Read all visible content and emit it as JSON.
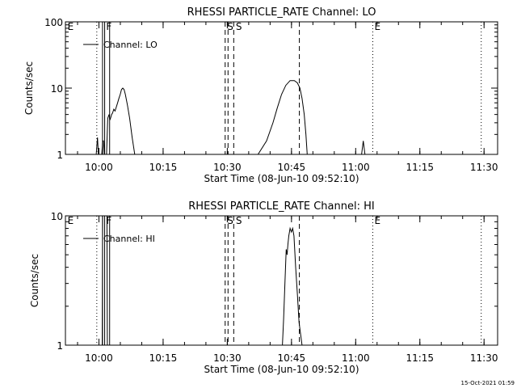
{
  "x_ticks": [
    {
      "v": 7.83,
      "label": "10:00"
    },
    {
      "v": 22.83,
      "label": "10:15"
    },
    {
      "v": 37.83,
      "label": "10:30"
    },
    {
      "v": 52.83,
      "label": "10:45"
    },
    {
      "v": 67.83,
      "label": "11:00"
    },
    {
      "v": 82.83,
      "label": "11:15"
    },
    {
      "v": 97.83,
      "label": "11:30"
    }
  ],
  "footer": {
    "timestamp": "15-Oct-2021 01:59"
  },
  "chart_data": [
    {
      "type": "line",
      "title": "RHESSI PARTICLE_RATE Channel: LO",
      "xlabel": "Start Time (08-Jun-10 09:52:10)",
      "ylabel": "Counts/sec",
      "x_unit": "minutes after 09:52:10",
      "xlim": [
        0,
        101
      ],
      "ylim": [
        1,
        100
      ],
      "y_scale": "log",
      "y_ticks": [
        {
          "v": 1,
          "label": "1"
        },
        {
          "v": 10,
          "label": "10"
        },
        {
          "v": 100,
          "label": "100"
        }
      ],
      "legend": {
        "placement": "top-left",
        "entries": [
          "Channel: LO"
        ]
      },
      "series": [
        {
          "name": "Channel: LO",
          "x": [
            0,
            7.2,
            7.5,
            7.7,
            8.0,
            8.5,
            8.7,
            8.9,
            9.1,
            9.6,
            9.9,
            10.2,
            10.4,
            10.6,
            10.8,
            11.0,
            11.3,
            11.6,
            11.9,
            12.2,
            12.5,
            12.8,
            13.1,
            13.4,
            13.7,
            14.0,
            14.5,
            15.0,
            15.6,
            16.2,
            20,
            45,
            47,
            48.5,
            49.5,
            50.5,
            51.5,
            52.5,
            53.5,
            54.2,
            54.8,
            55.3,
            55.8,
            56.2,
            56.5,
            57.5,
            68,
            69.2,
            69.6,
            70.0,
            101
          ],
          "y": [
            1,
            1,
            1.8,
            1,
            1,
            1,
            1.6,
            1.6,
            1,
            1,
            3.5,
            4,
            3.3,
            3.6,
            4,
            4.2,
            4.8,
            4.5,
            5.2,
            6,
            7,
            8,
            9.5,
            10,
            9.5,
            8,
            5.5,
            3.5,
            1.8,
            1,
            1,
            1,
            1.6,
            3,
            5,
            8,
            11,
            13,
            13,
            12,
            10,
            7,
            4,
            2,
            1,
            1,
            1,
            1,
            1.6,
            1,
            1
          ]
        }
      ],
      "markers": [
        {
          "x": 7.33,
          "style": "dotted",
          "label": ""
        },
        {
          "x": 8.67,
          "style": "solid",
          "label": ""
        },
        {
          "x": 9.17,
          "style": "solid",
          "label": ""
        },
        {
          "x": 10.33,
          "style": "solid",
          "label": ""
        },
        {
          "x": 37.33,
          "style": "dashed",
          "label": ""
        },
        {
          "x": 38.0,
          "style": "dashed",
          "label": ""
        },
        {
          "x": 39.33,
          "style": "dashed",
          "label": ""
        },
        {
          "x": 54.67,
          "style": "dashed",
          "label": ""
        },
        {
          "x": 71.83,
          "style": "dotted",
          "label": ""
        },
        {
          "x": 97.17,
          "style": "dotted",
          "label": ""
        }
      ],
      "annotations": [
        {
          "x": 0.5,
          "label": "E"
        },
        {
          "x": 9.5,
          "label": "F"
        },
        {
          "x": 37.8,
          "label": "S"
        },
        {
          "x": 39.8,
          "label": "S"
        },
        {
          "x": 72.2,
          "label": "E"
        }
      ]
    },
    {
      "type": "line",
      "title": "RHESSI PARTICLE_RATE Channel: HI",
      "xlabel": "Start Time (08-Jun-10 09:52:10)",
      "ylabel": "Counts/sec",
      "x_unit": "minutes after 09:52:10",
      "xlim": [
        0,
        101
      ],
      "ylim": [
        1,
        10
      ],
      "y_scale": "log",
      "y_ticks": [
        {
          "v": 1,
          "label": "1"
        },
        {
          "v": 10,
          "label": "10"
        }
      ],
      "legend": {
        "placement": "top-left",
        "entries": [
          "Channel: HI"
        ]
      },
      "series": [
        {
          "name": "Channel: HI",
          "x": [
            0,
            8.6,
            8.7,
            8.9,
            9.2,
            9.7,
            9.8,
            50.7,
            51.0,
            51.3,
            51.6,
            51.8,
            52.0,
            52.2,
            52.5,
            52.8,
            53.1,
            53.4,
            53.8,
            54.2,
            54.6,
            55.3,
            101
          ],
          "y": [
            1,
            1,
            10,
            10,
            10,
            10,
            1,
            1,
            1.6,
            3,
            5.5,
            5,
            6,
            7,
            8,
            7.5,
            8,
            7,
            4,
            2.5,
            1.5,
            1,
            1
          ]
        }
      ],
      "markers": [
        {
          "x": 7.33,
          "style": "dotted",
          "label": ""
        },
        {
          "x": 8.67,
          "style": "solid",
          "label": ""
        },
        {
          "x": 9.17,
          "style": "solid",
          "label": ""
        },
        {
          "x": 10.33,
          "style": "solid",
          "label": ""
        },
        {
          "x": 37.33,
          "style": "dashed",
          "label": ""
        },
        {
          "x": 38.0,
          "style": "dashed",
          "label": ""
        },
        {
          "x": 39.33,
          "style": "dashed",
          "label": ""
        },
        {
          "x": 54.67,
          "style": "dashed",
          "label": ""
        },
        {
          "x": 71.83,
          "style": "dotted",
          "label": ""
        },
        {
          "x": 97.17,
          "style": "dotted",
          "label": ""
        }
      ],
      "annotations": [
        {
          "x": 0.5,
          "label": "E"
        },
        {
          "x": 9.5,
          "label": "F"
        },
        {
          "x": 37.8,
          "label": "S"
        },
        {
          "x": 39.8,
          "label": "S"
        },
        {
          "x": 72.2,
          "label": "E"
        }
      ]
    }
  ]
}
